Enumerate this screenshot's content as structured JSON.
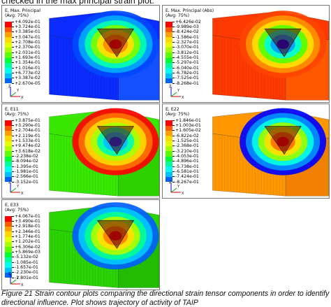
{
  "top_text": "checked in the max principal strain plot.",
  "caption": "Figure 21 Strain contour plots comparing the directional strain tensor components in order to identify directional influence. Plot shows trajectory of activity of TAIP",
  "contour_colors": [
    "#ff0000",
    "#ff5a00",
    "#ffa000",
    "#ffd800",
    "#e6ff00",
    "#a8ff00",
    "#5cff00",
    "#00ff30",
    "#00ff9a",
    "#00ffee",
    "#00c0ff",
    "#0064ff",
    "#0000ff"
  ],
  "panels": [
    {
      "id": "max-principal",
      "title": "E, Max. Principal",
      "avg": "(Avg: 75%)",
      "values": [
        "+4.092e-01",
        "+3.724e-01",
        "+3.385e-01",
        "+3.047e-01",
        "+2.708e-01",
        "+2.370e-01",
        "+2.031e-01",
        "+1.693e-01",
        "+1.354e-01",
        "+1.016e-01",
        "+6.773e-02",
        "+3.387e-02",
        "+2.670e-05"
      ],
      "field": "max-principal"
    },
    {
      "id": "max-principal-abs",
      "title": "E, Max. Principal (Abs)",
      "avg": "(Avg: 75%)",
      "values": [
        "+6.426e-02",
        "-9.989e-03",
        "-8.424e-02",
        "-1.586e-01",
        "-2.327e-01",
        "-3.070e-01",
        "-3.812e-01",
        "-4.555e-01",
        "-5.297e-01",
        "-6.040e-01",
        "-6.782e-01",
        "-7.525e-01",
        "-8.268e-01"
      ],
      "field": "abs"
    },
    {
      "id": "e11",
      "title": "E, E11",
      "avg": "(Avg: 75%)",
      "values": [
        "+3.875e-01",
        "+3.290e-01",
        "+2.704e-01",
        "+2.119e-01",
        "+1.533e-01",
        "+9.474e-02",
        "+3.618e-02",
        "-2.238e-02",
        "-8.094e-02",
        "-1.395e-01",
        "-1.981e-01",
        "-2.566e-01",
        "-3.152e-01"
      ],
      "field": "e11"
    },
    {
      "id": "e22",
      "title": "E, E22",
      "avg": "(Avg: 75%)",
      "values": [
        "+1.846e-01",
        "+1.003e-01",
        "+1.605e-02",
        "-6.822e-02",
        "-1.525e-01",
        "-2.368e-01",
        "-3.210e-01",
        "-4.053e-01",
        "-4.896e-01",
        "-5.738e-01",
        "-6.581e-01",
        "-7.424e-01",
        "-8.267e-01"
      ],
      "field": "e22"
    },
    {
      "id": "e33",
      "title": "E, E33",
      "avg": "(Avg: 75%)",
      "values": [
        "+4.067e-01",
        "+3.490e-01",
        "+2.918e-01",
        "+2.346e-01",
        "+1.774e-01",
        "+1.202e-01",
        "+6.306e-02",
        "+5.869e-03",
        "-5.132e-02",
        "-1.085e-01",
        "-1.657e-01",
        "-2.230e-01",
        "-2.801e-01"
      ],
      "field": "e33"
    }
  ],
  "axes_labels": {
    "x": "X",
    "y": "Y",
    "z": "Z"
  }
}
